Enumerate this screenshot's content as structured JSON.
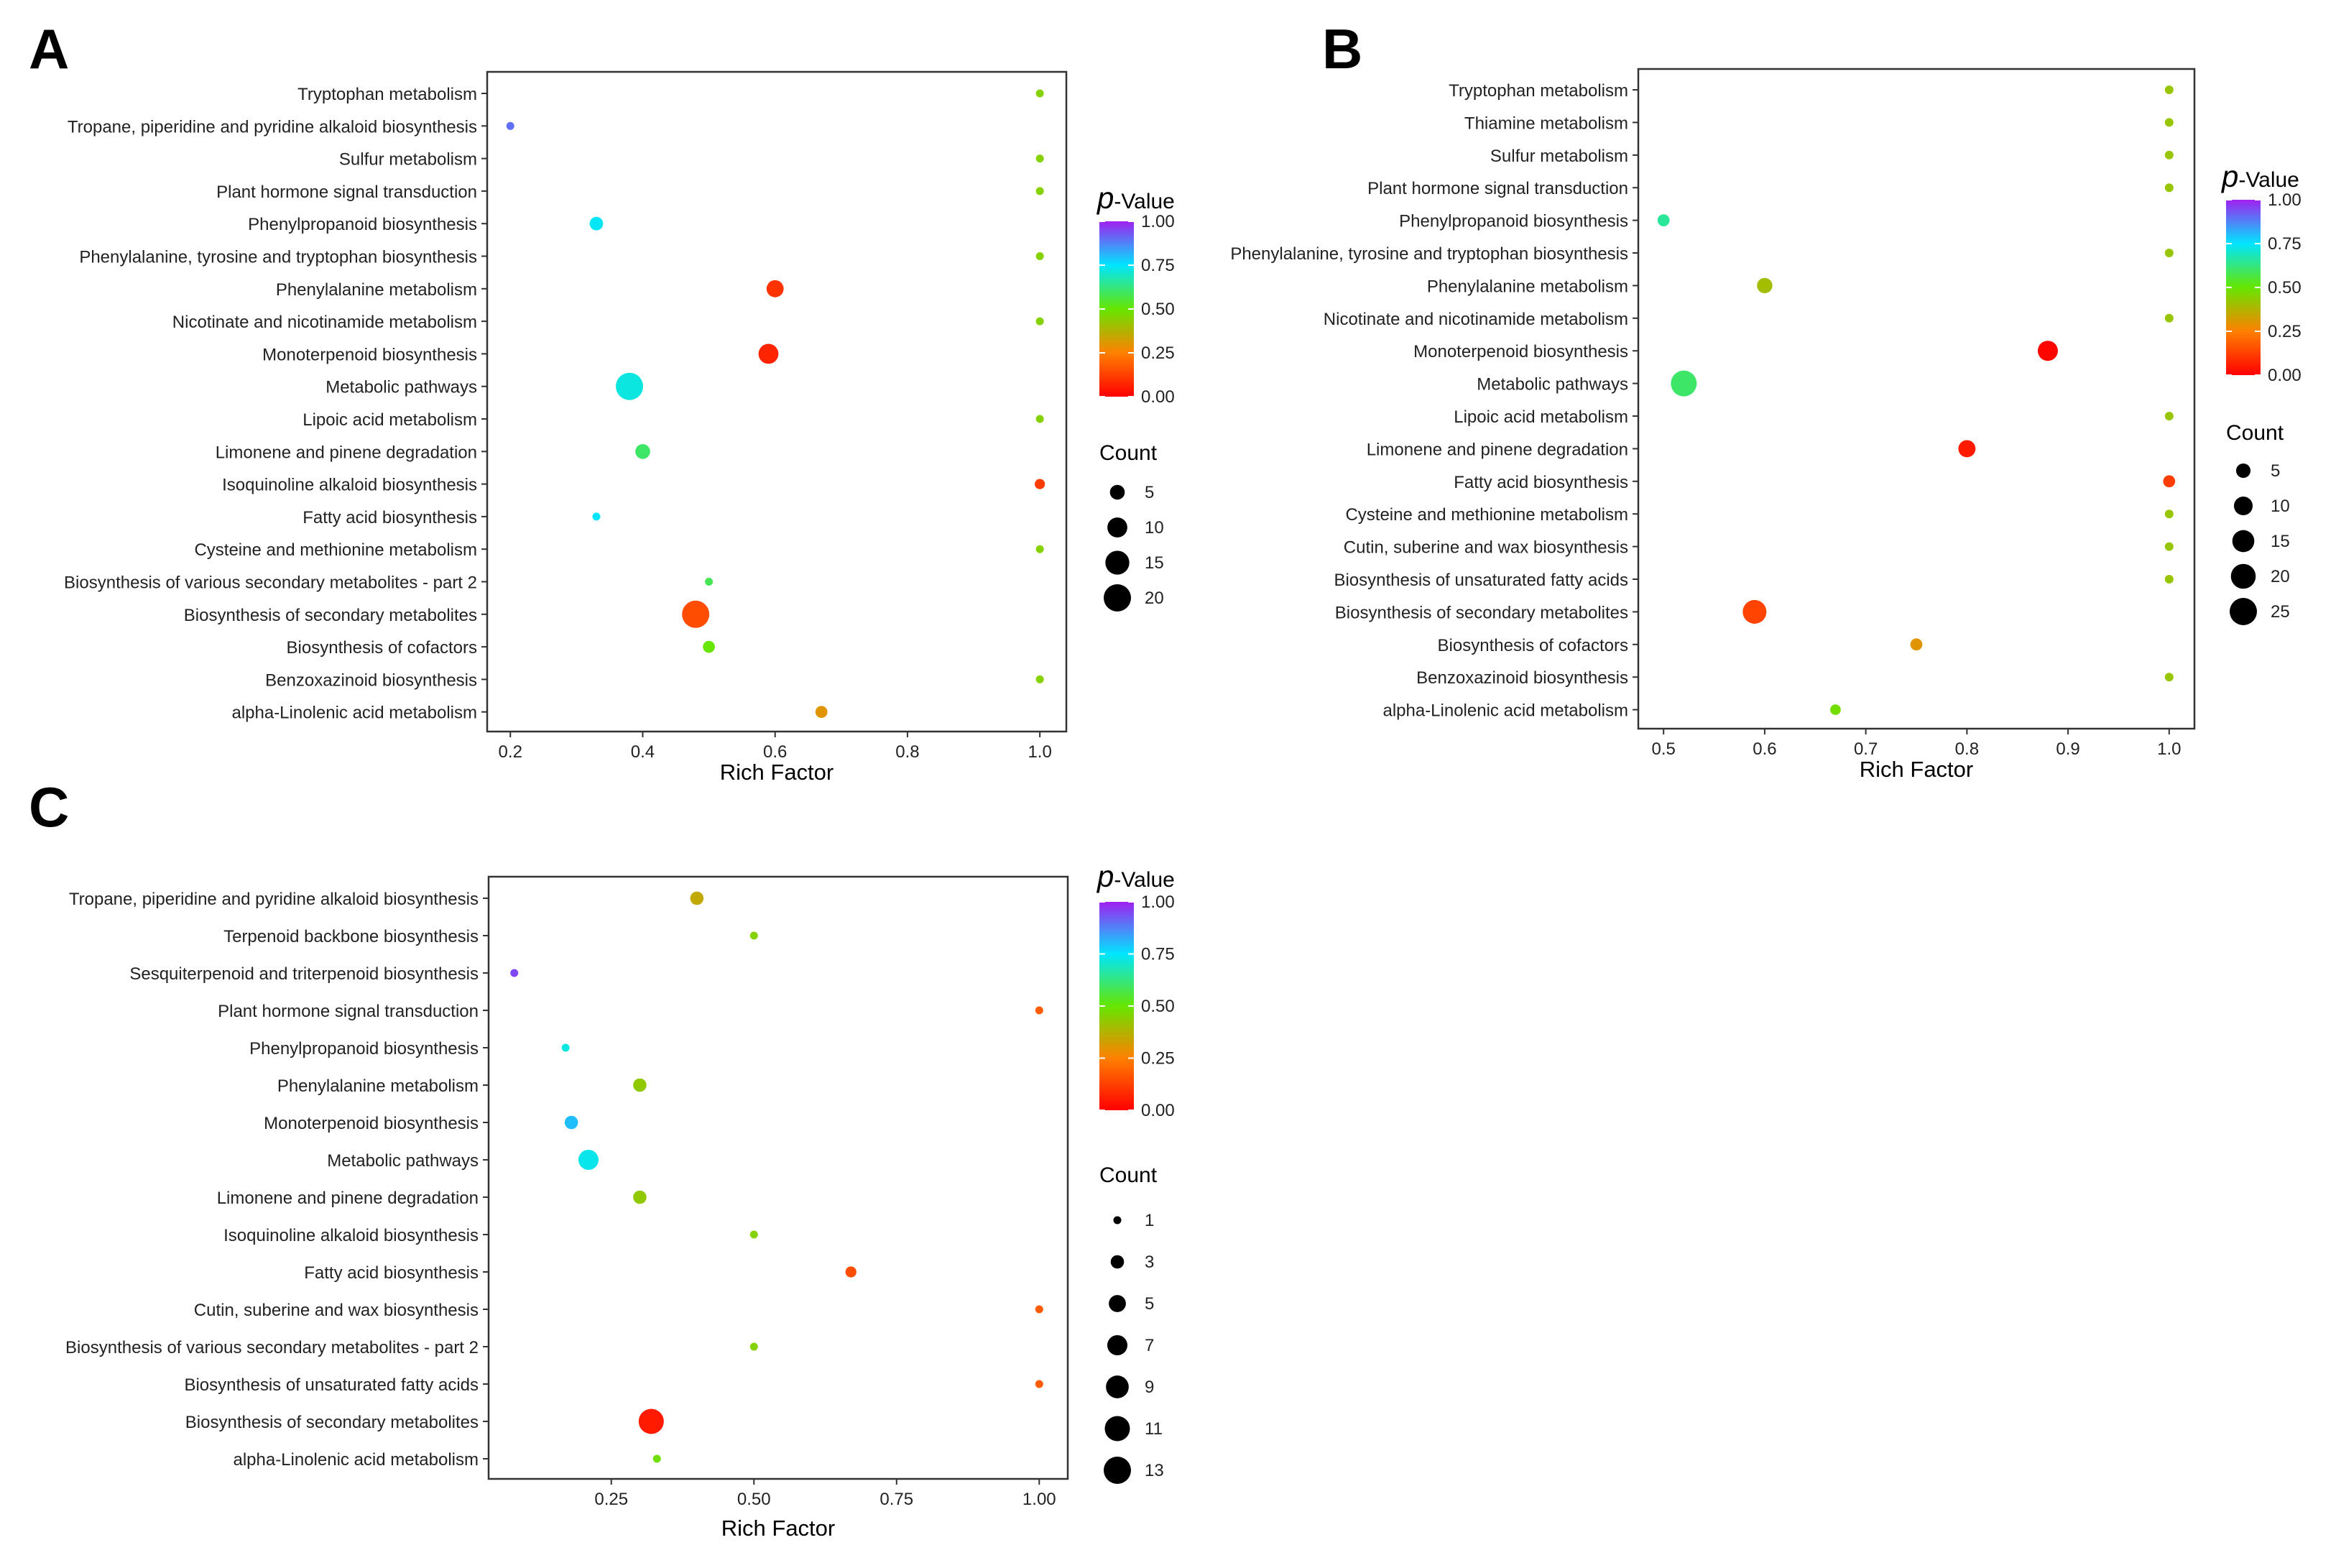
{
  "chart_data": [
    {
      "panel": "A",
      "type": "scatter",
      "xlabel": "Rich Factor",
      "ylabel": "",
      "xlim": [
        0.165,
        1.04
      ],
      "xticks": [
        0.2,
        0.4,
        0.6,
        0.8,
        1.0
      ],
      "xtick_labels": [
        "0.2",
        "0.4",
        "0.6",
        "0.8",
        "1.0"
      ],
      "grid": false,
      "legend_position": "right",
      "color_legend": {
        "title_symbol": "p",
        "title_suffix": "-Value",
        "ticks": [
          "1.00",
          "0.75",
          "0.50",
          "0.25",
          "0.00"
        ]
      },
      "size_legend": {
        "title": "Count",
        "values": [
          5,
          10,
          15,
          20
        ],
        "labels": [
          "5",
          "10",
          "15",
          "20"
        ]
      },
      "categories": [
        "Tryptophan metabolism",
        "Tropane, piperidine and pyridine alkaloid biosynthesis",
        "Sulfur metabolism",
        "Plant hormone signal transduction",
        "Phenylpropanoid biosynthesis",
        "Phenylalanine, tyrosine and tryptophan biosynthesis",
        "Phenylalanine metabolism",
        "Nicotinate and nicotinamide metabolism",
        "Monoterpenoid biosynthesis",
        "Metabolic pathways",
        "Lipoic acid metabolism",
        "Limonene and pinene degradation",
        "Isoquinoline alkaloid biosynthesis",
        "Fatty acid biosynthesis",
        "Cysteine and methionine metabolism",
        "Biosynthesis of various secondary metabolites - part 2",
        "Biosynthesis of secondary metabolites",
        "Biosynthesis of cofactors",
        "Benzoxazinoid biosynthesis",
        "alpha-Linolenic acid metabolism"
      ],
      "points": [
        {
          "pathway": "Tryptophan metabolism",
          "rich_factor": 1.0,
          "p_value": 0.45,
          "count": 1
        },
        {
          "pathway": "Tropane, piperidine and pyridine alkaloid biosynthesis",
          "rich_factor": 0.2,
          "p_value": 0.9,
          "count": 1
        },
        {
          "pathway": "Sulfur metabolism",
          "rich_factor": 1.0,
          "p_value": 0.45,
          "count": 1
        },
        {
          "pathway": "Plant hormone signal transduction",
          "rich_factor": 1.0,
          "p_value": 0.45,
          "count": 1
        },
        {
          "pathway": "Phenylpropanoid biosynthesis",
          "rich_factor": 0.33,
          "p_value": 0.74,
          "count": 4
        },
        {
          "pathway": "Phenylalanine, tyrosine and tryptophan biosynthesis",
          "rich_factor": 1.0,
          "p_value": 0.45,
          "count": 1
        },
        {
          "pathway": "Phenylalanine metabolism",
          "rich_factor": 0.6,
          "p_value": 0.1,
          "count": 7
        },
        {
          "pathway": "Nicotinate and nicotinamide metabolism",
          "rich_factor": 1.0,
          "p_value": 0.45,
          "count": 1
        },
        {
          "pathway": "Monoterpenoid biosynthesis",
          "rich_factor": 0.59,
          "p_value": 0.07,
          "count": 10
        },
        {
          "pathway": "Metabolic pathways",
          "rich_factor": 0.38,
          "p_value": 0.72,
          "count": 20
        },
        {
          "pathway": "Lipoic acid metabolism",
          "rich_factor": 1.0,
          "p_value": 0.45,
          "count": 1
        },
        {
          "pathway": "Limonene and pinene degradation",
          "rich_factor": 0.4,
          "p_value": 0.6,
          "count": 5
        },
        {
          "pathway": "Isoquinoline alkaloid biosynthesis",
          "rich_factor": 1.0,
          "p_value": 0.12,
          "count": 2
        },
        {
          "pathway": "Fatty acid biosynthesis",
          "rich_factor": 0.33,
          "p_value": 0.75,
          "count": 1
        },
        {
          "pathway": "Cysteine and methionine metabolism",
          "rich_factor": 1.0,
          "p_value": 0.45,
          "count": 1
        },
        {
          "pathway": "Biosynthesis of various secondary metabolites - part 2",
          "rich_factor": 0.5,
          "p_value": 0.58,
          "count": 1
        },
        {
          "pathway": "Biosynthesis of secondary metabolites",
          "rich_factor": 0.48,
          "p_value": 0.15,
          "count": 20
        },
        {
          "pathway": "Biosynthesis of cofactors",
          "rich_factor": 0.5,
          "p_value": 0.5,
          "count": 3
        },
        {
          "pathway": "Benzoxazinoid biosynthesis",
          "rich_factor": 1.0,
          "p_value": 0.45,
          "count": 1
        },
        {
          "pathway": "alpha-Linolenic acid metabolism",
          "rich_factor": 0.67,
          "p_value": 0.3,
          "count": 3
        }
      ]
    },
    {
      "panel": "B",
      "type": "scatter",
      "xlabel": "Rich Factor",
      "ylabel": "",
      "xlim": [
        0.475,
        1.025
      ],
      "xticks": [
        0.5,
        0.6,
        0.7,
        0.8,
        0.9,
        1.0
      ],
      "xtick_labels": [
        "0.5",
        "0.6",
        "0.7",
        "0.8",
        "0.9",
        "1.0"
      ],
      "grid": false,
      "legend_position": "right",
      "color_legend": {
        "title_symbol": "p",
        "title_suffix": "-Value",
        "ticks": [
          "1.00",
          "0.75",
          "0.50",
          "0.25",
          "0.00"
        ]
      },
      "size_legend": {
        "title": "Count",
        "values": [
          5,
          10,
          15,
          20,
          25
        ],
        "labels": [
          "5",
          "10",
          "15",
          "20",
          "25"
        ]
      },
      "categories": [
        "Tryptophan metabolism",
        "Thiamine metabolism",
        "Sulfur metabolism",
        "Plant hormone signal transduction",
        "Phenylpropanoid biosynthesis",
        "Phenylalanine, tyrosine and tryptophan biosynthesis",
        "Phenylalanine metabolism",
        "Nicotinate and nicotinamide metabolism",
        "Monoterpenoid biosynthesis",
        "Metabolic pathways",
        "Lipoic acid metabolism",
        "Limonene and pinene degradation",
        "Fatty acid biosynthesis",
        "Cysteine and methionine metabolism",
        "Cutin, suberine and wax biosynthesis",
        "Biosynthesis of unsaturated fatty acids",
        "Biosynthesis of secondary metabolites",
        "Biosynthesis of cofactors",
        "Benzoxazinoid biosynthesis",
        "alpha-Linolenic acid metabolism"
      ],
      "points": [
        {
          "pathway": "Tryptophan metabolism",
          "rich_factor": 1.0,
          "p_value": 0.42,
          "count": 1
        },
        {
          "pathway": "Thiamine metabolism",
          "rich_factor": 1.0,
          "p_value": 0.42,
          "count": 1
        },
        {
          "pathway": "Sulfur metabolism",
          "rich_factor": 1.0,
          "p_value": 0.42,
          "count": 1
        },
        {
          "pathway": "Plant hormone signal transduction",
          "rich_factor": 1.0,
          "p_value": 0.42,
          "count": 1
        },
        {
          "pathway": "Phenylpropanoid biosynthesis",
          "rich_factor": 0.5,
          "p_value": 0.65,
          "count": 3
        },
        {
          "pathway": "Phenylalanine, tyrosine and tryptophan biosynthesis",
          "rich_factor": 1.0,
          "p_value": 0.42,
          "count": 1
        },
        {
          "pathway": "Phenylalanine metabolism",
          "rich_factor": 0.6,
          "p_value": 0.4,
          "count": 6
        },
        {
          "pathway": "Nicotinate and nicotinamide metabolism",
          "rich_factor": 1.0,
          "p_value": 0.42,
          "count": 1
        },
        {
          "pathway": "Monoterpenoid biosynthesis",
          "rich_factor": 0.88,
          "p_value": 0.01,
          "count": 12
        },
        {
          "pathway": "Metabolic pathways",
          "rich_factor": 0.52,
          "p_value": 0.6,
          "count": 22
        },
        {
          "pathway": "Lipoic acid metabolism",
          "rich_factor": 1.0,
          "p_value": 0.42,
          "count": 1
        },
        {
          "pathway": "Limonene and pinene degradation",
          "rich_factor": 0.8,
          "p_value": 0.05,
          "count": 8
        },
        {
          "pathway": "Fatty acid biosynthesis",
          "rich_factor": 1.0,
          "p_value": 0.12,
          "count": 3
        },
        {
          "pathway": "Cysteine and methionine metabolism",
          "rich_factor": 1.0,
          "p_value": 0.42,
          "count": 1
        },
        {
          "pathway": "Cutin, suberine and wax biosynthesis",
          "rich_factor": 1.0,
          "p_value": 0.42,
          "count": 1
        },
        {
          "pathway": "Biosynthesis of unsaturated fatty acids",
          "rich_factor": 1.0,
          "p_value": 0.42,
          "count": 1
        },
        {
          "pathway": "Biosynthesis of secondary metabolites",
          "rich_factor": 0.59,
          "p_value": 0.13,
          "count": 18
        },
        {
          "pathway": "Biosynthesis of cofactors",
          "rich_factor": 0.75,
          "p_value": 0.3,
          "count": 3
        },
        {
          "pathway": "Benzoxazinoid biosynthesis",
          "rich_factor": 1.0,
          "p_value": 0.42,
          "count": 1
        },
        {
          "pathway": "alpha-Linolenic acid metabolism",
          "rich_factor": 0.67,
          "p_value": 0.48,
          "count": 2
        }
      ]
    },
    {
      "panel": "C",
      "type": "scatter",
      "xlabel": "Rich Factor",
      "ylabel": "",
      "xlim": [
        0.035,
        1.05
      ],
      "xticks": [
        0.25,
        0.5,
        0.75,
        1.0
      ],
      "xtick_labels": [
        "0.25",
        "0.50",
        "0.75",
        "1.00"
      ],
      "grid": false,
      "legend_position": "right",
      "color_legend": {
        "title_symbol": "p",
        "title_suffix": "-Value",
        "ticks": [
          "1.00",
          "0.75",
          "0.50",
          "0.25",
          "0.00"
        ]
      },
      "size_legend": {
        "title": "Count",
        "values": [
          1,
          3,
          5,
          7,
          9,
          11,
          13
        ],
        "labels": [
          "1",
          "3",
          "5",
          "7",
          "9",
          "11",
          "13"
        ]
      },
      "categories": [
        "Tropane, piperidine and pyridine alkaloid biosynthesis",
        "Terpenoid backbone biosynthesis",
        "Sesquiterpenoid and triterpenoid biosynthesis",
        "Plant hormone signal transduction",
        "Phenylpropanoid biosynthesis",
        "Phenylalanine metabolism",
        "Monoterpenoid biosynthesis",
        "Metabolic pathways",
        "Limonene and pinene degradation",
        "Isoquinoline alkaloid biosynthesis",
        "Fatty acid biosynthesis",
        "Cutin, suberine and wax biosynthesis",
        "Biosynthesis of various secondary metabolites - part 2",
        "Biosynthesis of unsaturated fatty acids",
        "Biosynthesis of secondary metabolites",
        "alpha-Linolenic acid metabolism"
      ],
      "points": [
        {
          "pathway": "Tropane, piperidine and pyridine alkaloid biosynthesis",
          "rich_factor": 0.4,
          "p_value": 0.35,
          "count": 3
        },
        {
          "pathway": "Terpenoid backbone biosynthesis",
          "rich_factor": 0.5,
          "p_value": 0.45,
          "count": 1
        },
        {
          "pathway": "Sesquiterpenoid and triterpenoid biosynthesis",
          "rich_factor": 0.08,
          "p_value": 0.95,
          "count": 1
        },
        {
          "pathway": "Plant hormone signal transduction",
          "rich_factor": 1.0,
          "p_value": 0.18,
          "count": 1
        },
        {
          "pathway": "Phenylpropanoid biosynthesis",
          "rich_factor": 0.17,
          "p_value": 0.72,
          "count": 1
        },
        {
          "pathway": "Phenylalanine metabolism",
          "rich_factor": 0.3,
          "p_value": 0.43,
          "count": 3
        },
        {
          "pathway": "Monoterpenoid biosynthesis",
          "rich_factor": 0.18,
          "p_value": 0.8,
          "count": 3
        },
        {
          "pathway": "Metabolic pathways",
          "rich_factor": 0.21,
          "p_value": 0.73,
          "count": 7
        },
        {
          "pathway": "Limonene and pinene degradation",
          "rich_factor": 0.3,
          "p_value": 0.43,
          "count": 3
        },
        {
          "pathway": "Isoquinoline alkaloid biosynthesis",
          "rich_factor": 0.5,
          "p_value": 0.45,
          "count": 1
        },
        {
          "pathway": "Fatty acid biosynthesis",
          "rich_factor": 0.67,
          "p_value": 0.15,
          "count": 2
        },
        {
          "pathway": "Cutin, suberine and wax biosynthesis",
          "rich_factor": 1.0,
          "p_value": 0.18,
          "count": 1
        },
        {
          "pathway": "Biosynthesis of various secondary metabolites - part 2",
          "rich_factor": 0.5,
          "p_value": 0.45,
          "count": 1
        },
        {
          "pathway": "Biosynthesis of unsaturated fatty acids",
          "rich_factor": 1.0,
          "p_value": 0.18,
          "count": 1
        },
        {
          "pathway": "Biosynthesis of secondary metabolites",
          "rich_factor": 0.32,
          "p_value": 0.05,
          "count": 11
        },
        {
          "pathway": "alpha-Linolenic acid metabolism",
          "rich_factor": 0.33,
          "p_value": 0.48,
          "count": 1
        }
      ]
    }
  ]
}
